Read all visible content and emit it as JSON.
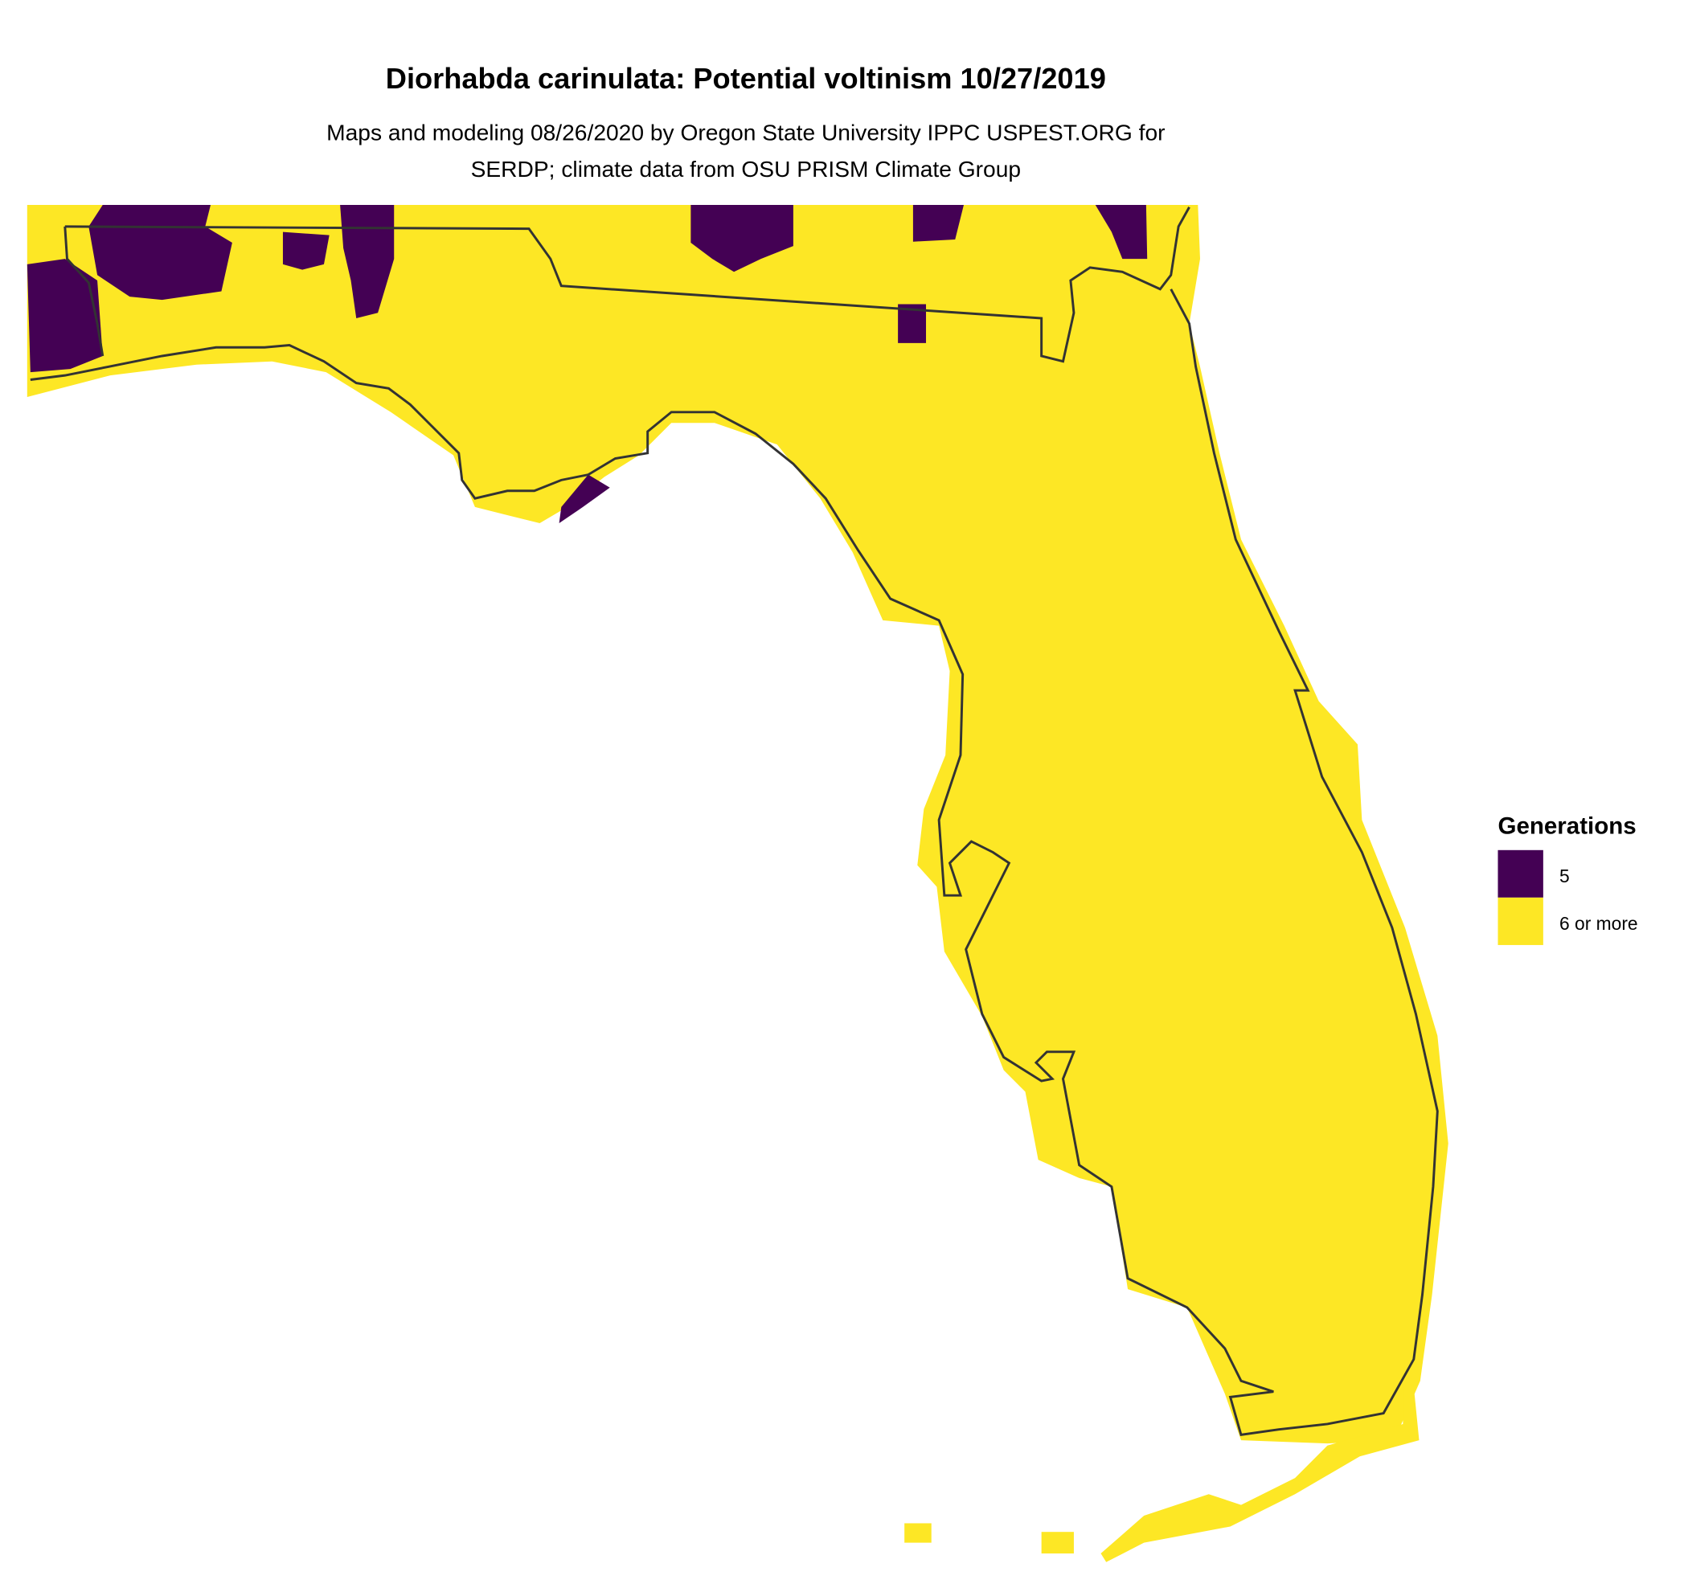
{
  "title": "Diorhabda carinulata: Potential voltinism 10/27/2019",
  "subtitle": [
    "Maps and modeling 08/26/2020 by Oregon State University IPPC USPEST.ORG for",
    "SERDP; climate data from OSU PRISM Climate Group"
  ],
  "legend": {
    "title": "Generations",
    "items": [
      {
        "label": "5",
        "color": "#440154"
      },
      {
        "label": "6 or more",
        "color": "#FDE725"
      }
    ]
  }
}
